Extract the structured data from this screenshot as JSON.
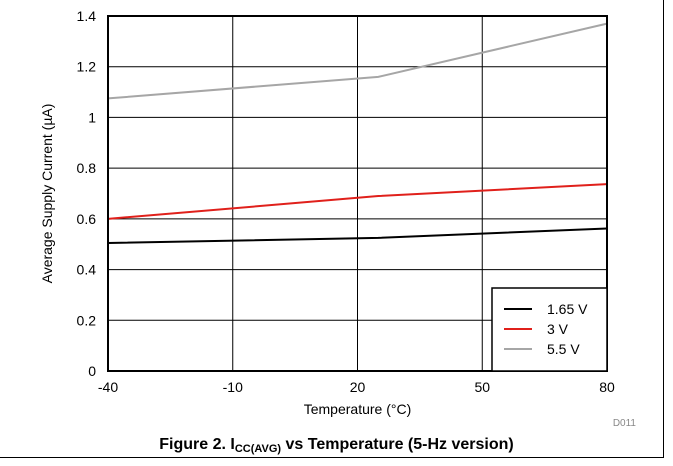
{
  "chart_data": {
    "type": "line",
    "title": "",
    "xlabel": "Temperature (°C)",
    "ylabel": "Average Supply Current (µA)",
    "xlim": [
      -40,
      80
    ],
    "ylim": [
      0,
      1.4
    ],
    "x_ticks": [
      "-40",
      "-10",
      "20",
      "50",
      "80"
    ],
    "y_ticks": [
      "0",
      "0.2",
      "0.4",
      "0.6",
      "0.8",
      "1",
      "1.2",
      "1.4"
    ],
    "grid": true,
    "legend_position": "bottom-right",
    "series": [
      {
        "name": "1.65 V",
        "color": "#000000",
        "x": [
          -40,
          25,
          80
        ],
        "y": [
          0.505,
          0.525,
          0.562
        ]
      },
      {
        "name": "3 V",
        "color": "#e0201b",
        "x": [
          -40,
          25,
          80
        ],
        "y": [
          0.6,
          0.69,
          0.737
        ]
      },
      {
        "name": "5.5 V",
        "color": "#a6a6a6",
        "x": [
          -40,
          25,
          80
        ],
        "y": [
          1.075,
          1.16,
          1.37
        ]
      }
    ]
  },
  "figure_code": "D011",
  "caption": {
    "prefix": "Figure 2. I",
    "subscript": "CC(AVG)",
    "suffix": " vs Temperature (5-Hz version)"
  }
}
